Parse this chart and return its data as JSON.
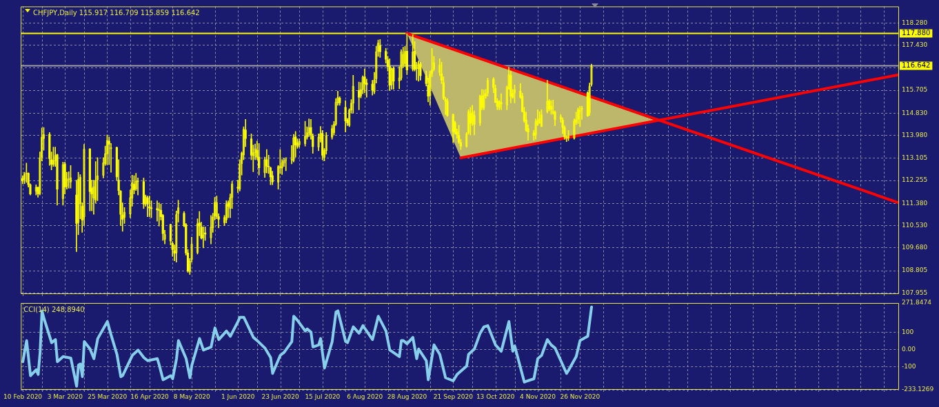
{
  "chart_data": [
    {
      "type": "candlestick",
      "title": "CHFJPY,Daily 115.917 116.709 115.859 116.642",
      "color": "#ffff00",
      "grid": true,
      "tick_labels": "y",
      "marker": "none",
      "xlim": [
        "2020-02-09",
        "2021-05-11"
      ],
      "xticks": [
        {
          "value": "2020-02-10",
          "label": null
        },
        {
          "value": "2020-02-20",
          "label": null
        },
        {
          "value": "2020-03-03",
          "label": null
        },
        {
          "value": "2020-03-13",
          "label": null
        },
        {
          "value": "2020-03-25",
          "label": null
        },
        {
          "value": "2020-04-06",
          "label": null
        },
        {
          "value": "2020-04-16",
          "label": null
        },
        {
          "value": "2020-04-28",
          "label": null
        },
        {
          "value": "2020-05-08",
          "label": null
        },
        {
          "value": "2020-05-20",
          "label": null
        },
        {
          "value": "2020-06-01",
          "label": null
        },
        {
          "value": "2020-06-11",
          "label": null
        },
        {
          "value": "2020-06-23",
          "label": null
        },
        {
          "value": "2020-07-03",
          "label": null
        },
        {
          "value": "2020-07-15",
          "label": null
        },
        {
          "value": "2020-07-27",
          "label": null
        },
        {
          "value": "2020-08-06",
          "label": null
        },
        {
          "value": "2020-08-18",
          "label": null
        },
        {
          "value": "2020-08-28",
          "label": null
        },
        {
          "value": "2020-09-09",
          "label": null
        },
        {
          "value": "2020-09-21",
          "label": null
        },
        {
          "value": "2020-10-01",
          "label": null
        },
        {
          "value": "2020-10-13",
          "label": null
        },
        {
          "value": "2020-10-23",
          "label": null
        },
        {
          "value": "2020-11-04",
          "label": null
        },
        {
          "value": "2020-11-16",
          "label": null
        },
        {
          "value": "2020-11-26",
          "label": null
        },
        {
          "value": "2020-12-08",
          "label": null
        },
        {
          "value": "2020-12-18",
          "label": null
        },
        {
          "value": "2020-12-30",
          "label": null
        },
        {
          "value": "2021-01-11",
          "label": null
        },
        {
          "value": "2021-01-21",
          "label": null
        },
        {
          "value": "2021-02-02",
          "label": null
        },
        {
          "value": "2021-02-12",
          "label": null
        },
        {
          "value": "2021-02-24",
          "label": null
        },
        {
          "value": "2021-03-08",
          "label": null
        },
        {
          "value": "2021-03-18",
          "label": null
        },
        {
          "value": "2021-03-30",
          "label": null
        },
        {
          "value": "2021-04-09",
          "label": null
        },
        {
          "value": "2021-04-21",
          "label": null
        },
        {
          "value": "2021-05-03",
          "label": null
        }
      ],
      "ylim": [
        107.91,
        118.91
      ],
      "yticks": [
        {
          "value": 118.28,
          "label": "118.280"
        },
        {
          "value": 117.43,
          "label": "117.430"
        },
        {
          "value": 116.555,
          "label": null
        },
        {
          "value": 115.705,
          "label": "115.705"
        },
        {
          "value": 114.83,
          "label": "114.830"
        },
        {
          "value": 113.98,
          "label": "113.980"
        },
        {
          "value": 113.105,
          "label": "113.105"
        },
        {
          "value": 112.255,
          "label": "112.255"
        },
        {
          "value": 111.38,
          "label": "111.380"
        },
        {
          "value": 110.53,
          "label": "110.530"
        },
        {
          "value": 109.68,
          "label": "109.680"
        },
        {
          "value": 108.805,
          "label": "108.805"
        },
        {
          "value": 107.955,
          "label": "107.955"
        }
      ],
      "ref_lines": [
        {
          "axis": "y",
          "value": 117.88,
          "label": "117.880",
          "color": "#ffff00"
        },
        {
          "axis": "y",
          "value": 116.642,
          "label": "116.642",
          "color": "#a0a0a0"
        }
      ],
      "x": [
        "2020-02-10",
        "2020-02-11",
        "2020-02-12",
        "2020-02-13",
        "2020-02-14",
        "2020-02-17",
        "2020-02-18",
        "2020-02-19",
        "2020-02-20",
        "2020-02-21",
        "2020-02-24",
        "2020-02-25",
        "2020-02-26",
        "2020-02-27",
        "2020-02-28",
        "2020-03-02",
        "2020-03-03",
        "2020-03-04",
        "2020-03-05",
        "2020-03-06",
        "2020-03-09",
        "2020-03-10",
        "2020-03-11",
        "2020-03-12",
        "2020-03-13",
        "2020-03-16",
        "2020-03-17",
        "2020-03-18",
        "2020-03-19",
        "2020-03-20",
        "2020-03-23",
        "2020-03-24",
        "2020-03-25",
        "2020-03-26",
        "2020-03-27",
        "2020-03-30",
        "2020-03-31",
        "2020-04-01",
        "2020-04-02",
        "2020-04-03",
        "2020-04-06",
        "2020-04-07",
        "2020-04-08",
        "2020-04-09",
        "2020-04-10",
        "2020-04-13",
        "2020-04-14",
        "2020-04-15",
        "2020-04-16",
        "2020-04-17",
        "2020-04-20",
        "2020-04-21",
        "2020-04-22",
        "2020-04-23",
        "2020-04-24",
        "2020-04-27",
        "2020-04-28",
        "2020-04-29",
        "2020-04-30",
        "2020-05-01",
        "2020-05-04",
        "2020-05-05",
        "2020-05-06",
        "2020-05-07",
        "2020-05-08",
        "2020-05-11",
        "2020-05-12",
        "2020-05-13",
        "2020-05-14",
        "2020-05-15",
        "2020-05-18",
        "2020-05-19",
        "2020-05-20",
        "2020-05-21",
        "2020-05-22",
        "2020-05-25",
        "2020-05-26",
        "2020-05-27",
        "2020-05-28",
        "2020-05-29",
        "2020-06-01",
        "2020-06-02",
        "2020-06-03",
        "2020-06-04",
        "2020-06-05",
        "2020-06-08",
        "2020-06-09",
        "2020-06-10",
        "2020-06-11",
        "2020-06-12",
        "2020-06-15",
        "2020-06-16",
        "2020-06-17",
        "2020-06-18",
        "2020-06-19",
        "2020-06-22",
        "2020-06-23",
        "2020-06-24",
        "2020-06-25",
        "2020-06-26",
        "2020-06-29",
        "2020-06-30",
        "2020-07-01",
        "2020-07-02",
        "2020-07-03",
        "2020-07-06",
        "2020-07-07",
        "2020-07-08",
        "2020-07-09",
        "2020-07-10",
        "2020-07-13",
        "2020-07-14",
        "2020-07-15",
        "2020-07-16",
        "2020-07-17",
        "2020-07-20",
        "2020-07-21",
        "2020-07-22",
        "2020-07-23",
        "2020-07-24",
        "2020-07-27",
        "2020-07-28",
        "2020-07-29",
        "2020-07-30",
        "2020-07-31",
        "2020-08-03",
        "2020-08-04",
        "2020-08-05",
        "2020-08-06",
        "2020-08-07",
        "2020-08-10",
        "2020-08-11",
        "2020-08-12",
        "2020-08-13",
        "2020-08-14",
        "2020-08-17",
        "2020-08-18",
        "2020-08-19",
        "2020-08-20",
        "2020-08-21",
        "2020-08-24",
        "2020-08-25",
        "2020-08-26",
        "2020-08-27",
        "2020-08-28",
        "2020-08-31",
        "2020-09-01",
        "2020-09-02",
        "2020-09-03",
        "2020-09-04",
        "2020-09-07",
        "2020-09-08",
        "2020-09-09",
        "2020-09-10",
        "2020-09-11",
        "2020-09-14",
        "2020-09-15",
        "2020-09-16",
        "2020-09-17",
        "2020-09-18",
        "2020-09-21",
        "2020-09-22",
        "2020-09-23",
        "2020-09-24",
        "2020-09-25",
        "2020-09-28",
        "2020-09-29",
        "2020-09-30",
        "2020-10-01",
        "2020-10-02",
        "2020-10-05",
        "2020-10-06",
        "2020-10-07",
        "2020-10-08",
        "2020-10-09",
        "2020-10-12",
        "2020-10-13",
        "2020-10-14",
        "2020-10-15",
        "2020-10-16",
        "2020-10-19",
        "2020-10-20",
        "2020-10-21",
        "2020-10-22",
        "2020-10-23",
        "2020-10-26",
        "2020-10-27",
        "2020-10-28",
        "2020-10-29",
        "2020-10-30",
        "2020-11-02",
        "2020-11-03",
        "2020-11-04",
        "2020-11-05",
        "2020-11-06",
        "2020-11-09",
        "2020-11-10",
        "2020-11-11",
        "2020-11-12",
        "2020-11-13",
        "2020-11-16",
        "2020-11-17",
        "2020-11-18",
        "2020-11-19",
        "2020-11-20",
        "2020-11-23",
        "2020-11-24",
        "2020-11-25",
        "2020-11-26",
        "2020-11-27",
        "2020-11-30",
        "2020-12-01",
        "2020-12-02"
      ],
      "ohlc": [
        [
          112.33,
          112.44,
          112.13,
          112.25
        ],
        [
          112.28,
          112.57,
          112.13,
          112.51
        ],
        [
          112.51,
          112.92,
          112.18,
          112.54
        ],
        [
          112.53,
          112.55,
          112.0,
          112.09
        ],
        [
          112.09,
          112.13,
          111.7,
          111.74
        ],
        [
          111.83,
          112.09,
          111.7,
          112.0
        ],
        [
          112.0,
          112.0,
          111.61,
          111.74
        ],
        [
          111.74,
          113.35,
          111.7,
          113.13
        ],
        [
          113.13,
          114.26,
          113.0,
          113.92
        ],
        [
          113.85,
          114.28,
          113.41,
          114.02
        ],
        [
          114.02,
          114.09,
          112.83,
          113.09
        ],
        [
          113.05,
          113.35,
          112.66,
          112.87
        ],
        [
          112.86,
          113.53,
          112.79,
          113.03
        ],
        [
          113.0,
          113.53,
          112.79,
          113.22
        ],
        [
          113.24,
          113.26,
          111.31,
          111.92
        ],
        [
          111.55,
          112.96,
          111.31,
          112.87
        ],
        [
          112.89,
          112.96,
          111.74,
          112.0
        ],
        [
          112.02,
          112.57,
          111.92,
          112.33
        ],
        [
          112.29,
          112.59,
          111.96,
          112.31
        ],
        [
          112.18,
          112.83,
          111.96,
          112.37
        ],
        [
          111.7,
          112.27,
          109.53,
          110.61
        ],
        [
          110.63,
          112.57,
          110.18,
          112.31
        ],
        [
          111.35,
          112.48,
          110.79,
          112.39
        ],
        [
          111.27,
          111.4,
          110.27,
          110.74
        ],
        [
          110.85,
          113.64,
          110.53,
          113.46
        ],
        [
          113.46,
          113.48,
          111.09,
          111.83
        ],
        [
          111.96,
          112.27,
          111.09,
          111.74
        ],
        [
          111.57,
          112.27,
          110.96,
          112.02
        ],
        [
          111.5,
          112.98,
          111.4,
          112.27
        ],
        [
          112.27,
          113.13,
          111.48,
          112.44
        ],
        [
          112.44,
          113.13,
          112.35,
          112.94
        ],
        [
          112.89,
          113.57,
          112.83,
          113.29
        ],
        [
          113.26,
          113.99,
          112.86,
          113.79
        ],
        [
          113.76,
          113.92,
          112.86,
          113.64
        ],
        [
          113.46,
          113.67,
          112.57,
          113.52
        ],
        [
          113.52,
          113.54,
          112.27,
          112.39
        ],
        [
          112.27,
          113.05,
          111.7,
          111.87
        ],
        [
          111.85,
          111.87,
          110.53,
          110.96
        ],
        [
          110.94,
          111.4,
          110.31,
          110.77
        ],
        [
          110.83,
          111.22,
          110.61,
          111.05
        ],
        [
          110.96,
          111.89,
          110.83,
          111.61
        ],
        [
          111.57,
          112.46,
          111.27,
          112.18
        ],
        [
          112.11,
          112.44,
          111.74,
          111.9
        ],
        [
          111.92,
          112.53,
          111.87,
          112.24
        ],
        [
          112.2,
          112.35,
          111.7,
          112.25
        ],
        [
          112.21,
          112.35,
          111.18,
          111.35
        ],
        [
          111.35,
          111.7,
          111.27,
          111.64
        ],
        [
          111.59,
          111.66,
          110.87,
          111.35
        ],
        [
          111.25,
          111.66,
          110.87,
          111.2
        ],
        [
          111.2,
          111.48,
          110.83,
          111.18
        ],
        [
          111.18,
          111.48,
          110.7,
          111.13
        ],
        [
          111.13,
          111.4,
          110.51,
          111.11
        ],
        [
          111.11,
          111.35,
          110.74,
          110.87
        ],
        [
          110.92,
          110.96,
          109.96,
          110.22
        ],
        [
          109.99,
          110.35,
          109.83,
          110.2
        ],
        [
          110.57,
          110.59,
          109.79,
          109.94
        ],
        [
          109.85,
          109.92,
          109.35,
          109.61
        ],
        [
          109.57,
          109.79,
          109.18,
          109.47
        ],
        [
          109.47,
          111.09,
          109.13,
          110.96
        ],
        [
          110.98,
          111.5,
          110.66,
          111.22
        ],
        [
          111.0,
          111.07,
          110.48,
          110.53
        ],
        [
          110.57,
          110.61,
          109.4,
          109.48
        ],
        [
          109.48,
          109.61,
          108.74,
          108.79
        ],
        [
          108.76,
          109.27,
          108.66,
          109.18
        ],
        [
          109.22,
          110.09,
          109.13,
          109.83
        ],
        [
          109.48,
          110.79,
          109.44,
          110.61
        ],
        [
          110.63,
          111.07,
          110.14,
          110.51
        ],
        [
          110.48,
          110.66,
          110.01,
          110.05
        ],
        [
          110.05,
          110.48,
          109.68,
          110.18
        ],
        [
          110.25,
          110.48,
          109.96,
          110.2
        ],
        [
          110.05,
          110.92,
          109.83,
          110.48
        ],
        [
          110.44,
          111.0,
          110.27,
          110.87
        ],
        [
          110.87,
          111.61,
          110.74,
          111.42
        ],
        [
          110.87,
          111.66,
          110.79,
          111.42
        ],
        [
          110.87,
          110.98,
          110.44,
          110.77
        ],
        [
          110.63,
          110.92,
          110.53,
          110.85
        ],
        [
          110.74,
          111.48,
          110.63,
          111.35
        ],
        [
          111.4,
          111.48,
          110.83,
          111.27
        ],
        [
          111.18,
          111.74,
          110.83,
          111.61
        ],
        [
          111.59,
          112.22,
          111.18,
          112.13
        ],
        [
          112.0,
          112.27,
          111.79,
          111.96
        ],
        [
          111.92,
          113.05,
          111.85,
          112.89
        ],
        [
          112.89,
          113.35,
          112.46,
          113.31
        ],
        [
          113.22,
          114.31,
          113.05,
          114.22
        ],
        [
          114.19,
          114.59,
          113.55,
          113.86
        ],
        [
          113.85,
          114.04,
          113.05,
          113.22
        ],
        [
          113.18,
          113.61,
          112.59,
          113.33
        ],
        [
          113.31,
          113.65,
          113.05,
          113.48
        ],
        [
          113.41,
          113.76,
          113.05,
          113.15
        ],
        [
          113.15,
          113.67,
          112.46,
          112.74
        ],
        [
          112.54,
          113.15,
          112.37,
          113.06
        ],
        [
          113.05,
          113.44,
          112.54,
          112.8
        ],
        [
          112.8,
          113.22,
          112.52,
          112.77
        ],
        [
          112.74,
          112.77,
          112.09,
          112.39
        ],
        [
          112.44,
          112.61,
          112.09,
          112.2
        ],
        [
          112.18,
          112.83,
          111.92,
          112.8
        ],
        [
          112.72,
          113.44,
          112.52,
          112.8
        ],
        [
          112.72,
          113.06,
          112.48,
          112.94
        ],
        [
          112.92,
          113.12,
          112.79,
          113.02
        ],
        [
          113.02,
          113.13,
          112.63,
          113.05
        ],
        [
          113.03,
          113.59,
          112.89,
          113.07
        ],
        [
          113.0,
          114.02,
          112.96,
          113.9
        ],
        [
          113.93,
          114.13,
          113.15,
          113.61
        ],
        [
          113.55,
          113.85,
          113.48,
          113.71
        ],
        [
          113.61,
          113.85,
          113.52,
          113.76
        ],
        [
          113.65,
          114.52,
          113.57,
          113.96
        ],
        [
          113.9,
          114.31,
          113.83,
          114.09
        ],
        [
          114.07,
          114.61,
          113.93,
          114.28
        ],
        [
          114.28,
          114.59,
          113.83,
          113.99
        ],
        [
          113.96,
          114.04,
          113.29,
          113.55
        ],
        [
          113.52,
          114.04,
          113.39,
          113.92
        ],
        [
          113.85,
          114.32,
          113.72,
          114.06
        ],
        [
          114.06,
          114.17,
          113.05,
          113.22
        ],
        [
          113.13,
          113.48,
          113.0,
          113.41
        ],
        [
          113.38,
          114.09,
          113.26,
          113.98
        ],
        [
          113.9,
          114.37,
          113.83,
          114.25
        ],
        [
          114.07,
          114.51,
          113.99,
          114.42
        ],
        [
          114.39,
          115.39,
          114.35,
          115.26
        ],
        [
          115.22,
          115.67,
          115.13,
          115.44
        ],
        [
          115.41,
          115.46,
          115.13,
          115.22
        ],
        [
          115.05,
          115.31,
          114.11,
          114.53
        ],
        [
          114.57,
          114.63,
          114.35,
          114.46
        ],
        [
          114.35,
          115.0,
          114.31,
          114.96
        ],
        [
          114.94,
          115.35,
          114.83,
          115.22
        ],
        [
          115.2,
          116.28,
          114.83,
          115.87
        ],
        [
          115.7,
          116.02,
          114.96,
          115.44
        ],
        [
          115.48,
          116.0,
          115.41,
          115.74
        ],
        [
          115.72,
          116.26,
          115.57,
          116.22
        ],
        [
          116.22,
          116.52,
          115.61,
          115.96
        ],
        [
          115.98,
          116.13,
          115.44,
          115.92
        ],
        [
          115.94,
          116.09,
          115.52,
          115.7
        ],
        [
          115.64,
          116.39,
          115.57,
          116.11
        ],
        [
          116.13,
          117.39,
          115.98,
          117.19
        ],
        [
          117.18,
          117.63,
          117.0,
          117.52
        ],
        [
          117.42,
          117.65,
          116.96,
          117.18
        ],
        [
          117.19,
          117.31,
          116.74,
          116.89
        ],
        [
          116.87,
          117.0,
          116.44,
          116.61
        ],
        [
          116.63,
          116.91,
          115.7,
          115.9
        ],
        [
          115.9,
          116.57,
          115.74,
          116.52
        ],
        [
          116.54,
          116.61,
          115.74,
          116.05
        ],
        [
          116.05,
          116.61,
          115.76,
          116.19
        ],
        [
          116.16,
          117.26,
          116.09,
          117.19
        ],
        [
          116.68,
          117.35,
          116.57,
          117.09
        ],
        [
          116.71,
          117.39,
          116.61,
          117.2
        ],
        [
          117.2,
          117.87,
          116.3,
          116.48
        ],
        [
          116.5,
          117.83,
          116.44,
          117.18
        ],
        [
          117.2,
          117.57,
          116.44,
          116.5
        ],
        [
          116.52,
          116.78,
          116.09,
          116.59
        ],
        [
          116.52,
          116.83,
          116.05,
          116.74
        ],
        [
          116.71,
          116.78,
          116.09,
          116.26
        ],
        [
          116.26,
          116.44,
          115.87,
          115.96
        ],
        [
          115.91,
          116.17,
          115.26,
          115.48
        ],
        [
          115.48,
          116.44,
          115.13,
          116.33
        ],
        [
          116.33,
          117.31,
          116.22,
          116.5
        ],
        [
          116.5,
          117.0,
          116.44,
          116.77
        ],
        [
          116.37,
          116.91,
          116.26,
          116.68
        ],
        [
          116.33,
          116.78,
          115.96,
          116.09
        ],
        [
          116.0,
          116.22,
          115.35,
          115.39
        ],
        [
          115.35,
          115.44,
          114.78,
          115.29
        ],
        [
          115.29,
          115.39,
          114.7,
          114.74
        ],
        [
          114.78,
          114.8,
          113.7,
          114.13
        ],
        [
          114.46,
          114.52,
          114.02,
          114.09
        ],
        [
          114.11,
          114.22,
          113.87,
          114.02
        ],
        [
          113.98,
          114.37,
          113.67,
          113.72
        ],
        [
          113.7,
          113.83,
          113.44,
          113.57
        ],
        [
          113.55,
          114.09,
          113.52,
          114.05
        ],
        [
          114.07,
          114.96,
          114.02,
          114.9
        ],
        [
          114.8,
          115.05,
          114.0,
          114.44
        ],
        [
          114.51,
          115.13,
          114.35,
          114.87
        ],
        [
          114.74,
          114.92,
          114.0,
          114.39
        ],
        [
          114.44,
          115.52,
          114.35,
          115.5
        ],
        [
          115.48,
          115.74,
          114.96,
          115.05
        ],
        [
          115.03,
          115.72,
          114.96,
          115.52
        ],
        [
          115.48,
          115.74,
          115.39,
          115.59
        ],
        [
          115.59,
          116.17,
          115.48,
          116.09
        ],
        [
          116.13,
          116.19,
          115.61,
          115.81
        ],
        [
          115.78,
          115.91,
          115.22,
          115.24
        ],
        [
          115.29,
          115.39,
          114.96,
          115.09
        ],
        [
          115.03,
          115.31,
          114.96,
          115.29
        ],
        [
          115.24,
          115.57,
          114.96,
          115.18
        ],
        [
          115.13,
          115.87,
          114.96,
          115.83
        ],
        [
          115.74,
          116.59,
          115.74,
          116.31
        ],
        [
          116.28,
          116.44,
          115.22,
          115.48
        ],
        [
          115.59,
          115.74,
          115.39,
          115.44
        ],
        [
          115.59,
          115.91,
          115.22,
          115.74
        ],
        [
          115.67,
          115.96,
          115.39,
          115.44
        ],
        [
          115.48,
          115.59,
          114.87,
          114.89
        ],
        [
          114.89,
          115.05,
          114.48,
          114.54
        ],
        [
          114.57,
          114.87,
          114.13,
          114.18
        ],
        [
          114.24,
          114.39,
          113.79,
          114.11
        ],
        [
          114.07,
          114.18,
          113.79,
          113.98
        ],
        [
          114.0,
          114.61,
          113.83,
          114.52
        ],
        [
          114.39,
          114.96,
          114.35,
          114.57
        ],
        [
          114.44,
          114.89,
          114.44,
          114.63
        ],
        [
          114.31,
          114.96,
          114.31,
          114.78
        ],
        [
          114.87,
          116.09,
          114.83,
          115.29
        ],
        [
          115.29,
          115.35,
          114.92,
          114.98
        ],
        [
          114.96,
          115.31,
          114.79,
          115.11
        ],
        [
          114.89,
          115.33,
          114.79,
          114.85
        ],
        [
          114.87,
          114.92,
          114.35,
          114.59
        ],
        [
          114.59,
          114.78,
          114.48,
          114.7
        ],
        [
          114.57,
          114.65,
          114.05,
          114.28
        ],
        [
          114.28,
          114.35,
          113.83,
          113.92
        ],
        [
          113.85,
          113.96,
          113.74,
          113.93
        ],
        [
          113.87,
          114.17,
          113.78,
          113.95
        ],
        [
          113.86,
          114.61,
          113.83,
          114.54
        ],
        [
          114.46,
          114.87,
          114.39,
          114.59
        ],
        [
          114.59,
          115.03,
          114.43,
          114.98
        ],
        [
          114.89,
          115.09,
          114.31,
          114.94
        ],
        [
          114.96,
          115.09,
          114.59,
          115.03
        ],
        [
          115.61,
          115.65,
          114.7,
          114.72
        ],
        [
          114.83,
          115.98,
          114.74,
          115.87
        ],
        [
          115.917,
          116.709,
          115.859,
          116.642
        ]
      ],
      "series": [
        {
          "type": "area",
          "color": "#bdb76b",
          "x": [
            "2020-08-28",
            "2020-09-25",
            "2021-01-04",
            "2020-08-28"
          ],
          "values": [
            117.88,
            113.12,
            114.56,
            117.88
          ]
        },
        {
          "type": "line",
          "color": "#ff0000",
          "x": [
            "2020-08-28",
            "2021-05-11"
          ],
          "values": [
            117.88,
            111.4
          ]
        },
        {
          "type": "line",
          "color": "#ff0000",
          "x": [
            "2020-09-25",
            "2021-05-11"
          ],
          "values": [
            113.12,
            116.3
          ]
        }
      ]
    },
    {
      "type": "line",
      "title": "CCI(14) 248.8940",
      "grid": true,
      "marker": "none",
      "xlim": [
        "2020-02-09",
        "2021-05-11"
      ],
      "xticks": [
        {
          "value": "2020-02-10",
          "label": "10 Feb 2020"
        },
        {
          "value": "2020-02-20",
          "label": null
        },
        {
          "value": "2020-03-03",
          "label": "3 Mar 2020"
        },
        {
          "value": "2020-03-13",
          "label": null
        },
        {
          "value": "2020-03-25",
          "label": "25 Mar 2020"
        },
        {
          "value": "2020-04-06",
          "label": null
        },
        {
          "value": "2020-04-16",
          "label": "16 Apr 2020"
        },
        {
          "value": "2020-04-28",
          "label": null
        },
        {
          "value": "2020-05-08",
          "label": "8 May 2020"
        },
        {
          "value": "2020-05-20",
          "label": null
        },
        {
          "value": "2020-06-01",
          "label": "1 Jun 2020"
        },
        {
          "value": "2020-06-11",
          "label": null
        },
        {
          "value": "2020-06-23",
          "label": "23 Jun 2020"
        },
        {
          "value": "2020-07-03",
          "label": null
        },
        {
          "value": "2020-07-15",
          "label": "15 Jul 2020"
        },
        {
          "value": "2020-07-27",
          "label": null
        },
        {
          "value": "2020-08-06",
          "label": "6 Aug 2020"
        },
        {
          "value": "2020-08-18",
          "label": null
        },
        {
          "value": "2020-08-28",
          "label": "28 Aug 2020"
        },
        {
          "value": "2020-09-09",
          "label": null
        },
        {
          "value": "2020-09-21",
          "label": "21 Sep 2020"
        },
        {
          "value": "2020-10-01",
          "label": null
        },
        {
          "value": "2020-10-13",
          "label": "13 Oct 2020"
        },
        {
          "value": "2020-10-23",
          "label": null
        },
        {
          "value": "2020-11-04",
          "label": "4 Nov 2020"
        },
        {
          "value": "2020-11-16",
          "label": null
        },
        {
          "value": "2020-11-26",
          "label": "26 Nov 2020"
        },
        {
          "value": "2020-12-08",
          "label": null
        },
        {
          "value": "2020-12-18",
          "label": null
        },
        {
          "value": "2020-12-30",
          "label": null
        },
        {
          "value": "2021-01-11",
          "label": null
        },
        {
          "value": "2021-01-21",
          "label": null
        },
        {
          "value": "2021-02-02",
          "label": null
        },
        {
          "value": "2021-02-12",
          "label": null
        },
        {
          "value": "2021-02-24",
          "label": null
        },
        {
          "value": "2021-03-08",
          "label": null
        },
        {
          "value": "2021-03-18",
          "label": null
        },
        {
          "value": "2021-03-30",
          "label": null
        },
        {
          "value": "2021-04-09",
          "label": null
        },
        {
          "value": "2021-04-21",
          "label": null
        },
        {
          "value": "2021-05-03",
          "label": null
        }
      ],
      "ylim": [
        -233.1269,
        271.8474
      ],
      "yticks": [
        -233.1269,
        -100,
        {
          "value": 0,
          "label": "0.00"
        },
        100,
        271.8474
      ],
      "series": [
        {
          "color": "#87ceeb",
          "x": [
            "2020-02-10",
            "2020-02-12",
            "2020-02-14",
            "2020-02-17",
            "2020-02-18",
            "2020-02-19",
            "2020-02-20",
            "2020-02-21",
            "2020-02-25",
            "2020-02-27",
            "2020-02-28",
            "2020-03-02",
            "2020-03-06",
            "2020-03-09",
            "2020-03-10",
            "2020-03-11",
            "2020-03-12",
            "2020-03-13",
            "2020-03-16",
            "2020-03-18",
            "2020-03-20",
            "2020-03-25",
            "2020-03-27",
            "2020-03-30",
            "2020-04-01",
            "2020-04-02",
            "2020-04-07",
            "2020-04-10",
            "2020-04-13",
            "2020-04-15",
            "2020-04-20",
            "2020-04-21",
            "2020-04-23",
            "2020-04-27",
            "2020-04-28",
            "2020-04-30",
            "2020-05-01",
            "2020-05-05",
            "2020-05-07",
            "2020-05-08",
            "2020-05-12",
            "2020-05-14",
            "2020-05-18",
            "2020-05-20",
            "2020-05-22",
            "2020-05-26",
            "2020-05-28",
            "2020-06-01",
            "2020-06-02",
            "2020-06-04",
            "2020-06-09",
            "2020-06-11",
            "2020-06-15",
            "2020-06-18",
            "2020-06-19",
            "2020-06-23",
            "2020-06-25",
            "2020-06-29",
            "2020-06-30",
            "2020-07-02",
            "2020-07-06",
            "2020-07-07",
            "2020-07-09",
            "2020-07-10",
            "2020-07-13",
            "2020-07-14",
            "2020-07-16",
            "2020-07-20",
            "2020-07-22",
            "2020-07-23",
            "2020-07-27",
            "2020-07-28",
            "2020-07-31",
            "2020-08-03",
            "2020-08-05",
            "2020-08-10",
            "2020-08-13",
            "2020-08-17",
            "2020-08-19",
            "2020-08-20",
            "2020-08-24",
            "2020-08-25",
            "2020-08-26",
            "2020-08-28",
            "2020-08-31",
            "2020-09-02",
            "2020-09-03",
            "2020-09-07",
            "2020-09-08",
            "2020-09-11",
            "2020-09-14",
            "2020-09-17",
            "2020-09-21",
            "2020-09-23",
            "2020-09-28",
            "2020-09-29",
            "2020-10-02",
            "2020-10-05",
            "2020-10-07",
            "2020-10-09",
            "2020-10-13",
            "2020-10-16",
            "2020-10-20",
            "2020-10-22",
            "2020-10-23",
            "2020-10-28",
            "2020-11-02",
            "2020-11-04",
            "2020-11-06",
            "2020-11-09",
            "2020-11-11",
            "2020-11-13",
            "2020-11-19",
            "2020-11-20",
            "2020-11-24",
            "2020-11-26",
            "2020-11-30",
            "2020-12-02"
          ],
          "values": [
            -70,
            53,
            -151,
            -116,
            -144,
            -15,
            226,
            183,
            41,
            59,
            -70,
            -40,
            -49,
            -212,
            -89,
            -83,
            -157,
            47,
            4,
            -52,
            65,
            164,
            84,
            -27,
            -157,
            -150,
            -33,
            -2,
            -46,
            -64,
            -52,
            -89,
            -175,
            -151,
            -169,
            -52,
            53,
            -52,
            -163,
            -89,
            65,
            -2,
            16,
            127,
            59,
            109,
            78,
            164,
            189,
            189,
            72,
            53,
            10,
            -46,
            -138,
            -33,
            -15,
            47,
            195,
            170,
            109,
            121,
            102,
            16,
            28,
            65,
            -107,
            47,
            220,
            226,
            47,
            41,
            133,
            96,
            140,
            59,
            195,
            109,
            -2,
            -9,
            -40,
            53,
            53,
            35,
            72,
            -52,
            4,
            -64,
            -175,
            28,
            -27,
            -163,
            -181,
            -144,
            -95,
            -27,
            4,
            96,
            133,
            140,
            28,
            -9,
            164,
            -9,
            22,
            -188,
            -169,
            -52,
            -33,
            59,
            28,
            10,
            -138,
            -120,
            -40,
            53,
            78,
            248.894
          ]
        }
      ]
    }
  ]
}
